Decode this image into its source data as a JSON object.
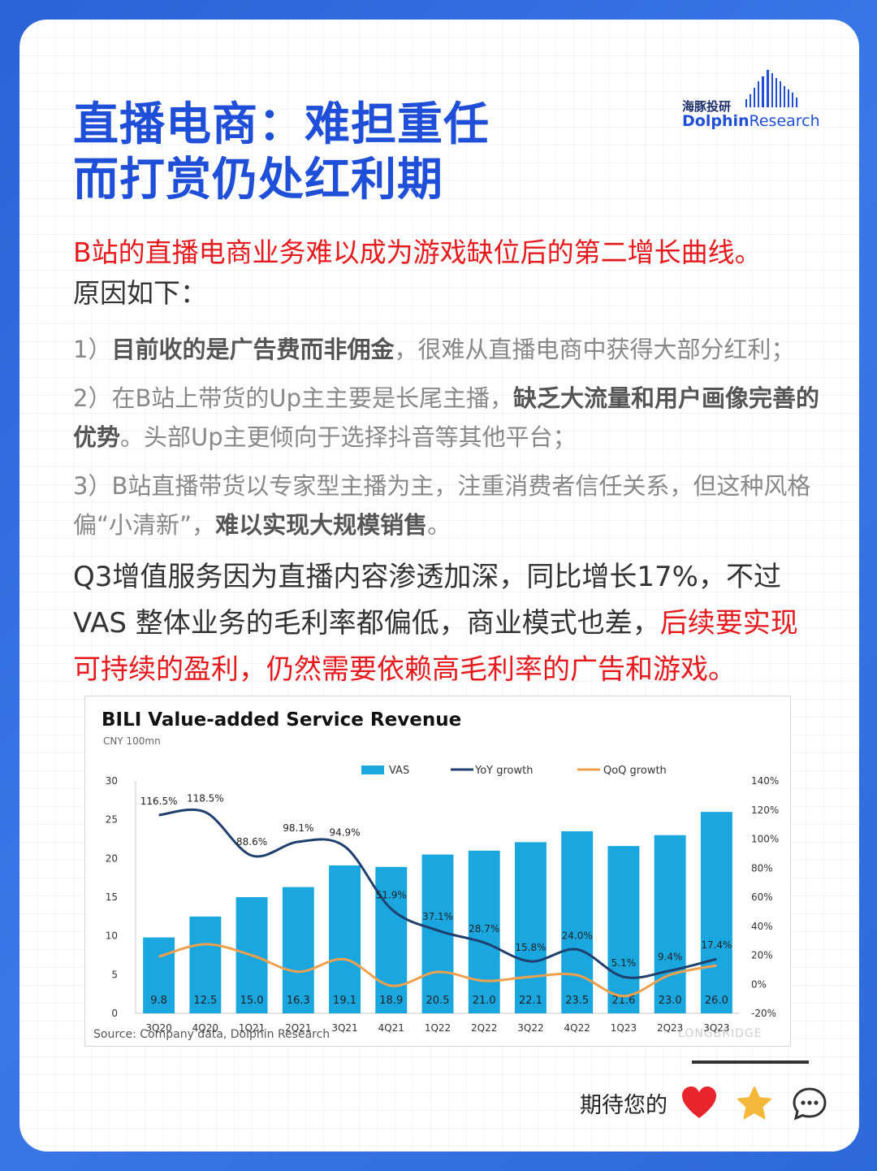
{
  "header": {
    "title_line1": "直播电商：难担重任",
    "title_line2": "而打赏仍处红利期",
    "logo_cn": "海豚投研",
    "logo_en_bold": "Dolphin",
    "logo_en_regular": "Research"
  },
  "intro": {
    "red_text": "B站的直播电商业务难以成为游戏缺位后的第二增长曲线。",
    "normal_text": "原因如下："
  },
  "points": [
    {
      "pre": "1）",
      "bold": "目前收的是广告费而非佣金",
      "post": "，很难从直播电商中获得大部分红利；"
    },
    {
      "pre": "2）在B站上带货的Up主主要是长尾主播，",
      "bold": "缺乏大流量和用户画像完善的优势",
      "post": "。头部Up主更倾向于选择抖音等其他平台；"
    },
    {
      "pre": "3）B站直播带货以专家型主播为主，注重消费者信任关系，但这种风格偏“小清新”，",
      "bold": "难以实现大规模销售",
      "post": "。"
    }
  ],
  "q3": {
    "normal_text": "Q3增值服务因为直播内容渗透加深，同比增长17%，不过VAS 整体业务的毛利率都偏低，商业模式也差，",
    "red_text": "后续要实现可持续的盈利，仍然需要依赖高毛利率的广告和游戏。"
  },
  "chart_data": {
    "type": "bar",
    "title": "BILI Value-added Service Revenue",
    "unit_label": "CNY 100mn",
    "categories": [
      "3Q20",
      "4Q20",
      "1Q21",
      "2Q21",
      "3Q21",
      "4Q21",
      "1Q22",
      "2Q22",
      "3Q22",
      "4Q22",
      "1Q23",
      "2Q23",
      "3Q23"
    ],
    "series": [
      {
        "name": "VAS",
        "type": "bar",
        "axis": "left",
        "color": "#1aa7e0",
        "values": [
          9.8,
          12.5,
          15.0,
          16.3,
          19.1,
          18.9,
          20.5,
          21.0,
          22.1,
          23.5,
          21.6,
          23.0,
          26.0
        ],
        "labels": [
          "9.8",
          "12.5",
          "15.0",
          "16.3",
          "19.1",
          "18.9",
          "20.5",
          "21.0",
          "22.1",
          "23.5",
          "21.6",
          "23.0",
          "26.0"
        ]
      },
      {
        "name": "YoY growth",
        "type": "line",
        "axis": "right",
        "color": "#1f3f6e",
        "values": [
          116.5,
          118.5,
          88.6,
          98.1,
          94.9,
          51.9,
          37.1,
          28.7,
          15.8,
          24.0,
          5.1,
          9.4,
          17.4
        ],
        "labels": [
          "116.5%",
          "118.5%",
          "88.6%",
          "98.1%",
          "94.9%",
          "51.9%",
          "37.1%",
          "28.7%",
          "15.8%",
          "24.0%",
          "5.1%",
          "9.4%",
          "17.4%"
        ]
      },
      {
        "name": "QoQ growth",
        "type": "line",
        "axis": "right",
        "color": "#f0a04b",
        "values": [
          19,
          27.6,
          20,
          8.7,
          17.2,
          -1.0,
          8.5,
          2.4,
          5.2,
          6.3,
          -8.1,
          6.5,
          13.0
        ]
      }
    ],
    "y_left": {
      "min": 0,
      "max": 30,
      "ticks": [
        "0",
        "5",
        "10",
        "15",
        "20",
        "25",
        "30"
      ]
    },
    "y_right": {
      "min": -20,
      "max": 140,
      "ticks": [
        "-20%",
        "0%",
        "20%",
        "40%",
        "60%",
        "80%",
        "100%",
        "120%",
        "140%"
      ]
    },
    "legend_position": "top-center",
    "grid": false,
    "source": "Source: Company data, Dolphin Research",
    "watermark": "LONGBRIDGE"
  },
  "footer": {
    "cta": "期待您的",
    "icons": [
      "heart-icon",
      "star-icon",
      "comment-icon"
    ],
    "colors": {
      "heart": "#e8242c",
      "star": "#f5b73a",
      "comment": "#333333"
    }
  }
}
